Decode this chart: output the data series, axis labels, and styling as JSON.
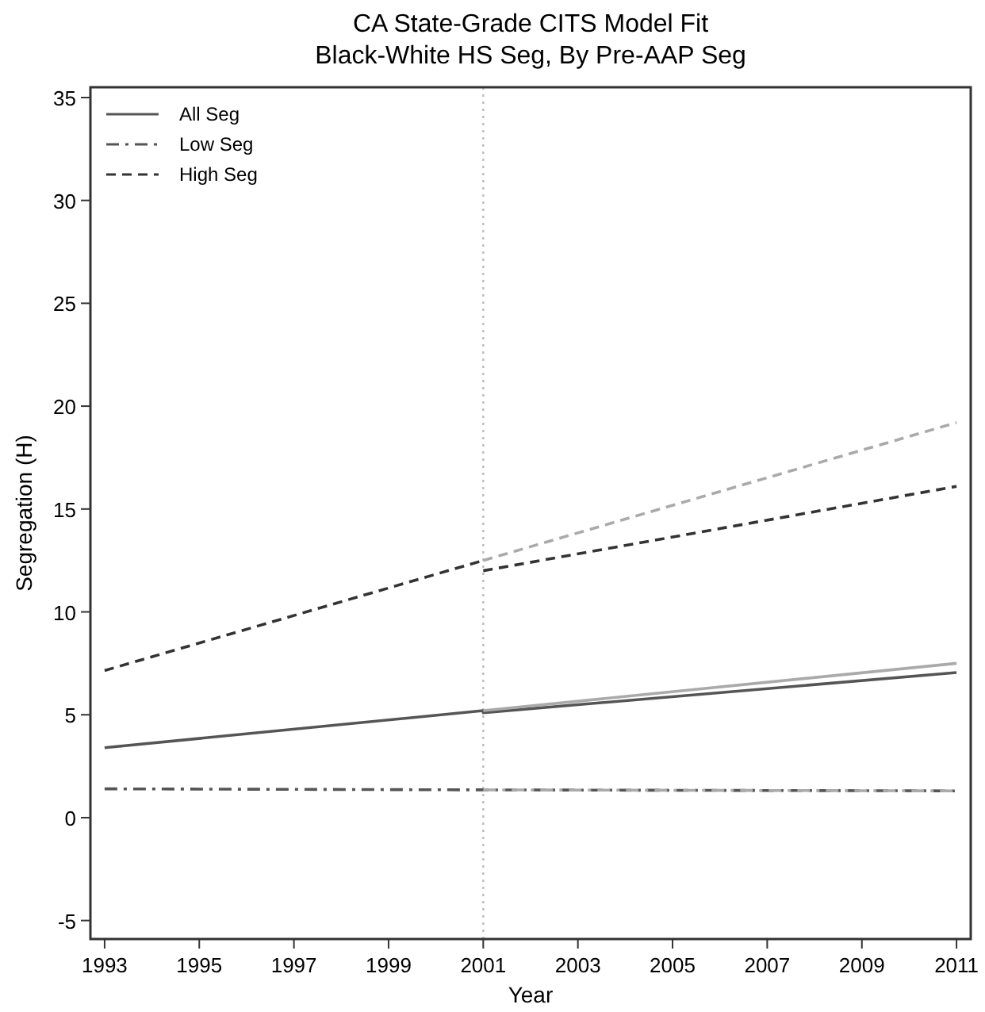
{
  "chart_data": {
    "type": "line",
    "title": "CA State-Grade CITS Model Fit",
    "subtitle": "Black-White HS Seg, By Pre-AAP Seg",
    "xlabel": "Year",
    "ylabel": "Segregation (H)",
    "xlim": [
      1992.7,
      2011.3
    ],
    "ylim": [
      -5.9,
      35.5
    ],
    "xticks": [
      1993,
      1995,
      1997,
      1999,
      2001,
      2003,
      2005,
      2007,
      2009,
      2011
    ],
    "yticks": [
      -5,
      0,
      5,
      10,
      15,
      20,
      25,
      30,
      35
    ],
    "grid": false,
    "legend": "top left",
    "marker": "none",
    "ref_lines": [
      {
        "axis": "x",
        "value": 2001,
        "color": "#bbbbbb",
        "line_style": "dotted"
      }
    ],
    "series": [
      {
        "name": "All Seg",
        "color": "#555555",
        "line_style": "solid",
        "x": [
          1993,
          2001,
          2001,
          2011
        ],
        "values": [
          3.4,
          5.2,
          5.1,
          7.05
        ]
      },
      {
        "name": "Low Seg",
        "color": "#555555",
        "line_style": "dashdot",
        "x": [
          1993,
          2001,
          2011
        ],
        "values": [
          1.4,
          1.35,
          1.3
        ]
      },
      {
        "name": "High Seg",
        "color": "#333333",
        "line_style": "dashed",
        "x": [
          1993,
          2001
        ],
        "values": [
          7.15,
          12.5
        ]
      },
      {
        "color": "#333333",
        "line_style": "dashed",
        "x": [
          2001,
          2011
        ],
        "values": [
          12.0,
          16.1
        ]
      },
      {
        "color": "#aaaaaa",
        "line_style": "solid",
        "x": [
          2001,
          2011
        ],
        "values": [
          5.2,
          7.5
        ]
      },
      {
        "color": "#aaaaaa",
        "line_style": "dashdot",
        "x": [
          2001,
          2011
        ],
        "values": [
          1.35,
          1.3
        ]
      },
      {
        "color": "#aaaaaa",
        "line_style": "dashed",
        "x": [
          2001,
          2011
        ],
        "values": [
          12.5,
          19.2
        ]
      }
    ]
  }
}
